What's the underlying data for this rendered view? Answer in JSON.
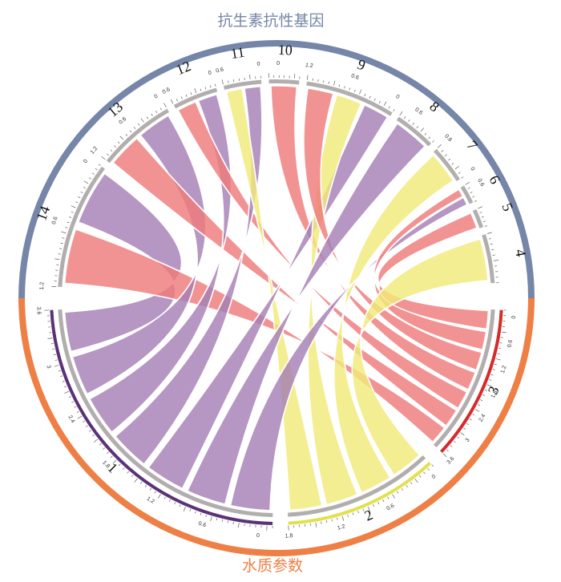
{
  "top_group": {
    "label": "抗生素抗性基因",
    "color": "#7686a8"
  },
  "bottom_group": {
    "label": "水质参数",
    "color": "#ee7f45"
  },
  "chord_colors": {
    "1": "#a67fb5",
    "2": "#f2ea7a",
    "3": "#ef7b7b"
  },
  "sources": [
    {
      "id": "1",
      "label": "1",
      "start_deg": 267,
      "end_deg": 181,
      "ticks": [
        "3.6",
        "3",
        "2.4",
        "1.8",
        "1.2",
        "0.6",
        "0"
      ],
      "arc_color": "#5b3277"
    },
    {
      "id": "2",
      "label": "2",
      "start_deg": 177,
      "end_deg": 137,
      "ticks": [
        "1.8",
        "1.2",
        "0.6",
        "0"
      ],
      "arc_color": "#e3e04c"
    },
    {
      "id": "3",
      "label": "3",
      "start_deg": 133,
      "end_deg": 93,
      "ticks": [
        "3.6",
        "3",
        "2.4",
        "1.8",
        "1.2",
        "0.6",
        "0"
      ],
      "arc_color": "#d42b2b"
    }
  ],
  "targets": [
    {
      "id": "4",
      "label": "4",
      "start_deg": 73,
      "end_deg": 86,
      "ticks": []
    },
    {
      "id": "5",
      "label": "5",
      "start_deg": 66,
      "end_deg": 71,
      "ticks": []
    },
    {
      "id": "6",
      "label": "6",
      "start_deg": 59,
      "end_deg": 64,
      "ticks": [
        "0.6"
      ]
    },
    {
      "id": "7",
      "label": "7",
      "start_deg": 47,
      "end_deg": 57,
      "ticks": [
        "0.6",
        "0"
      ]
    },
    {
      "id": "8",
      "label": "8",
      "start_deg": 34,
      "end_deg": 45,
      "ticks": [
        "0.6"
      ]
    },
    {
      "id": "9",
      "label": "9",
      "start_deg": 8,
      "end_deg": 32,
      "ticks": [
        "1.2",
        "0.6",
        "0"
      ]
    },
    {
      "id": "10",
      "label": "10",
      "start_deg": -2,
      "end_deg": 6,
      "ticks": [
        "0"
      ]
    },
    {
      "id": "11",
      "label": "11",
      "start_deg": -14,
      "end_deg": -4,
      "ticks": [
        "0.6",
        "0"
      ]
    },
    {
      "id": "12",
      "label": "12",
      "start_deg": -28,
      "end_deg": -16,
      "ticks": [
        "0.6",
        "0"
      ]
    },
    {
      "id": "13",
      "label": "13",
      "start_deg": -51,
      "end_deg": -30,
      "ticks": [
        "1.2",
        "0.6",
        "0"
      ]
    },
    {
      "id": "14",
      "label": "14",
      "start_deg": -87,
      "end_deg": -53,
      "ticks": [
        "1.2",
        "0.6",
        "0"
      ]
    }
  ],
  "chords": [
    {
      "source": "1",
      "target": "14"
    },
    {
      "source": "3",
      "target": "14"
    },
    {
      "source": "1",
      "target": "13"
    },
    {
      "source": "3",
      "target": "13"
    },
    {
      "source": "1",
      "target": "12"
    },
    {
      "source": "3",
      "target": "12"
    },
    {
      "source": "1",
      "target": "11"
    },
    {
      "source": "2",
      "target": "11"
    },
    {
      "source": "3",
      "target": "10"
    },
    {
      "source": "1",
      "target": "9"
    },
    {
      "source": "2",
      "target": "9"
    },
    {
      "source": "3",
      "target": "9"
    },
    {
      "source": "1",
      "target": "8"
    },
    {
      "source": "2",
      "target": "7"
    },
    {
      "source": "1",
      "target": "6"
    },
    {
      "source": "3",
      "target": "6"
    },
    {
      "source": "3",
      "target": "5"
    },
    {
      "source": "2",
      "target": "4"
    }
  ]
}
